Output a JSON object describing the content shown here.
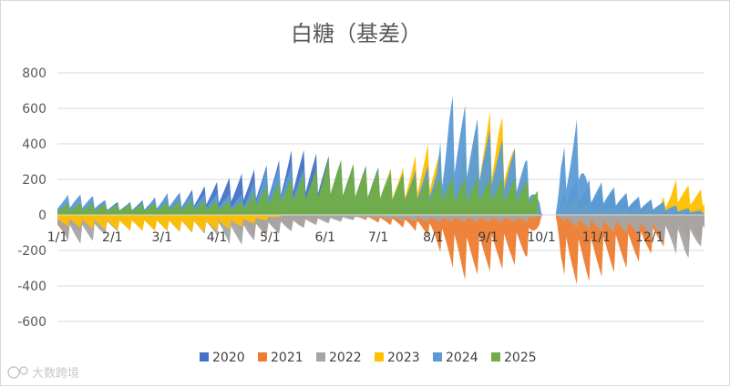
{
  "watermark": "大数跨境",
  "chart_data": {
    "type": "area",
    "title": "白糖（基差）",
    "xlabel": "",
    "ylabel": "",
    "ylim": [
      -600,
      800
    ],
    "yticks": [
      800,
      600,
      400,
      200,
      0,
      -200,
      -400,
      -600
    ],
    "xticks": [
      "1/1",
      "2/1",
      "3/1",
      "4/1",
      "5/1",
      "6/1",
      "7/1",
      "8/1",
      "9/1",
      "10/1",
      "11/1",
      "12/1"
    ],
    "day_range": [
      1,
      366
    ],
    "colors": {
      "2020": "#4472c4",
      "2021": "#ed7d31",
      "2022": "#a5a5a5",
      "2023": "#ffc000",
      "2024": "#5b9bd5",
      "2025": "#70ad47"
    },
    "series": [
      {
        "name": "2020",
        "points": [
          [
            1,
            40
          ],
          [
            20,
            80
          ],
          [
            40,
            70
          ],
          [
            60,
            100
          ],
          [
            80,
            150
          ],
          [
            95,
            200
          ],
          [
            110,
            250
          ],
          [
            125,
            300
          ],
          [
            135,
            380
          ],
          [
            145,
            350
          ],
          [
            155,
            330
          ],
          [
            165,
            290
          ],
          [
            180,
            270
          ],
          [
            195,
            250
          ],
          [
            210,
            250
          ],
          [
            225,
            240
          ],
          [
            245,
            230
          ],
          [
            262,
            230
          ],
          [
            275,
            0
          ],
          [
            282,
            0
          ],
          [
            290,
            210
          ],
          [
            300,
            170
          ],
          [
            310,
            150
          ],
          [
            320,
            120
          ],
          [
            330,
            90
          ],
          [
            340,
            60
          ],
          [
            366,
            40
          ]
        ]
      },
      {
        "name": "2021",
        "points": [
          [
            1,
            -150
          ],
          [
            10,
            -110
          ],
          [
            20,
            -80
          ],
          [
            30,
            -60
          ],
          [
            40,
            -70
          ],
          [
            55,
            -80
          ],
          [
            70,
            -70
          ],
          [
            90,
            -60
          ],
          [
            100,
            -80
          ],
          [
            115,
            -130
          ],
          [
            130,
            -90
          ],
          [
            150,
            -40
          ],
          [
            170,
            -20
          ],
          [
            185,
            -50
          ],
          [
            200,
            -80
          ],
          [
            210,
            -120
          ],
          [
            220,
            -250
          ],
          [
            230,
            -370
          ],
          [
            240,
            -330
          ],
          [
            255,
            -300
          ],
          [
            265,
            -260
          ],
          [
            275,
            0
          ],
          [
            282,
            0
          ],
          [
            285,
            -300
          ],
          [
            290,
            -400
          ],
          [
            300,
            -380
          ],
          [
            310,
            -340
          ],
          [
            320,
            -310
          ],
          [
            330,
            -260
          ],
          [
            340,
            -190
          ],
          [
            350,
            -150
          ],
          [
            366,
            -160
          ]
        ]
      },
      {
        "name": "2022",
        "points": [
          [
            1,
            -110
          ],
          [
            10,
            -170
          ],
          [
            20,
            -150
          ],
          [
            30,
            -100
          ],
          [
            45,
            -80
          ],
          [
            60,
            -90
          ],
          [
            75,
            -100
          ],
          [
            90,
            -110
          ],
          [
            100,
            -180
          ],
          [
            108,
            -160
          ],
          [
            118,
            -120
          ],
          [
            130,
            -100
          ],
          [
            145,
            -60
          ],
          [
            160,
            -40
          ],
          [
            175,
            -20
          ],
          [
            190,
            -30
          ],
          [
            210,
            -40
          ],
          [
            230,
            -40
          ],
          [
            250,
            -40
          ],
          [
            265,
            -40
          ],
          [
            275,
            0
          ],
          [
            282,
            0
          ],
          [
            290,
            -60
          ],
          [
            305,
            -90
          ],
          [
            320,
            -100
          ],
          [
            340,
            -140
          ],
          [
            355,
            -260
          ],
          [
            366,
            -160
          ]
        ]
      },
      {
        "name": "2023",
        "points": [
          [
            1,
            -60
          ],
          [
            20,
            -80
          ],
          [
            40,
            -90
          ],
          [
            60,
            -90
          ],
          [
            80,
            -100
          ],
          [
            100,
            -80
          ],
          [
            115,
            -40
          ],
          [
            130,
            0
          ],
          [
            145,
            100
          ],
          [
            160,
            200
          ],
          [
            175,
            250
          ],
          [
            195,
            260
          ],
          [
            210,
            400
          ],
          [
            225,
            320
          ],
          [
            240,
            560
          ],
          [
            250,
            600
          ],
          [
            260,
            350
          ],
          [
            275,
            0
          ],
          [
            282,
            0
          ],
          [
            290,
            120
          ],
          [
            300,
            60
          ],
          [
            320,
            40
          ],
          [
            340,
            60
          ],
          [
            350,
            200
          ],
          [
            360,
            150
          ],
          [
            366,
            140
          ]
        ]
      },
      {
        "name": "2024",
        "points": [
          [
            1,
            100
          ],
          [
            10,
            120
          ],
          [
            20,
            110
          ],
          [
            35,
            60
          ],
          [
            50,
            80
          ],
          [
            65,
            130
          ],
          [
            80,
            120
          ],
          [
            95,
            120
          ],
          [
            105,
            120
          ],
          [
            118,
            260
          ],
          [
            130,
            280
          ],
          [
            145,
            250
          ],
          [
            160,
            200
          ],
          [
            180,
            220
          ],
          [
            200,
            240
          ],
          [
            215,
            300
          ],
          [
            222,
            680
          ],
          [
            228,
            650
          ],
          [
            240,
            520
          ],
          [
            255,
            400
          ],
          [
            265,
            340
          ],
          [
            275,
            0
          ],
          [
            282,
            0
          ],
          [
            285,
            340
          ],
          [
            295,
            560
          ],
          [
            300,
            200
          ],
          [
            310,
            180
          ],
          [
            320,
            130
          ],
          [
            330,
            100
          ],
          [
            340,
            80
          ],
          [
            355,
            40
          ],
          [
            366,
            20
          ]
        ]
      },
      {
        "name": "2025",
        "points": [
          [
            1,
            60
          ],
          [
            15,
            70
          ],
          [
            30,
            60
          ],
          [
            45,
            60
          ],
          [
            60,
            70
          ],
          [
            75,
            80
          ],
          [
            90,
            80
          ],
          [
            105,
            80
          ],
          [
            115,
            150
          ],
          [
            130,
            200
          ],
          [
            145,
            250
          ],
          [
            155,
            330
          ],
          [
            170,
            280
          ],
          [
            190,
            240
          ],
          [
            210,
            220
          ],
          [
            230,
            210
          ],
          [
            250,
            210
          ],
          [
            265,
            200
          ],
          [
            272,
            150
          ]
        ]
      }
    ]
  }
}
